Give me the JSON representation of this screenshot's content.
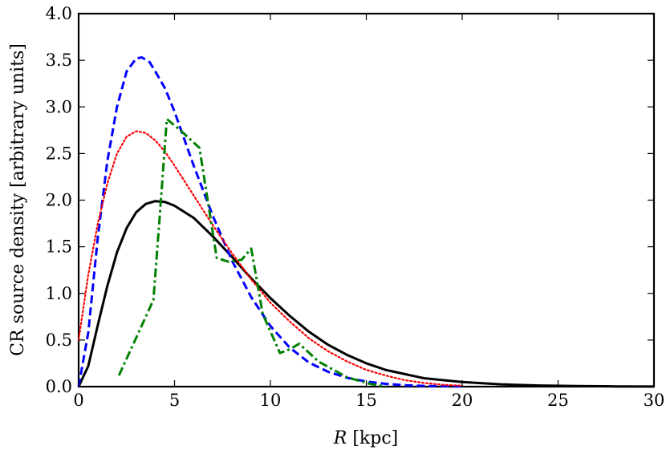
{
  "chart_data": {
    "type": "line",
    "title": "",
    "xlabel_var": "R",
    "xlabel_unit": " [kpc]",
    "ylabel": "CR source density [arbitrary units]",
    "xlim": [
      0,
      30
    ],
    "ylim": [
      0,
      4.0
    ],
    "xticks": [
      0,
      5,
      10,
      15,
      20,
      25,
      30
    ],
    "yticks": [
      0.0,
      0.5,
      1.0,
      1.5,
      2.0,
      2.5,
      3.0,
      3.5,
      4.0
    ],
    "xtick_labels": [
      "0",
      "5",
      "10",
      "15",
      "20",
      "25",
      "30"
    ],
    "ytick_labels": [
      "0.0",
      "0.5",
      "1.0",
      "1.5",
      "2.0",
      "2.5",
      "3.0",
      "3.5",
      "4.0"
    ],
    "grid": false,
    "series": [
      {
        "name": "solid",
        "color": "#000000",
        "style": "solid",
        "x": [
          0,
          0.5,
          1,
          1.5,
          2,
          2.5,
          3,
          3.5,
          4,
          4.5,
          5,
          6,
          7,
          8,
          9,
          10,
          11,
          12,
          13,
          14,
          15,
          16,
          18,
          20,
          22,
          24,
          26,
          28,
          30
        ],
        "y": [
          0.0,
          0.22,
          0.66,
          1.08,
          1.44,
          1.7,
          1.87,
          1.96,
          1.99,
          1.98,
          1.94,
          1.81,
          1.61,
          1.39,
          1.16,
          0.95,
          0.76,
          0.59,
          0.45,
          0.34,
          0.25,
          0.18,
          0.09,
          0.05,
          0.025,
          0.012,
          0.006,
          0.003,
          0.001
        ]
      },
      {
        "name": "dashed",
        "color": "#0000ff",
        "style": "dashed",
        "x": [
          0,
          0.5,
          1,
          1.5,
          2,
          2.5,
          3,
          3.3,
          3.7,
          4,
          4.5,
          5,
          5.5,
          6,
          7,
          8,
          9,
          10,
          11,
          12,
          13,
          14,
          15,
          16,
          17,
          18,
          20
        ],
        "y": [
          0.0,
          0.58,
          1.6,
          2.42,
          3.0,
          3.38,
          3.52,
          3.53,
          3.48,
          3.38,
          3.2,
          2.95,
          2.66,
          2.37,
          1.83,
          1.35,
          0.96,
          0.65,
          0.42,
          0.26,
          0.16,
          0.095,
          0.055,
          0.03,
          0.015,
          0.008,
          0.002
        ]
      },
      {
        "name": "dotted",
        "color": "#ff0000",
        "style": "dotted",
        "x": [
          0,
          0.5,
          1,
          1.5,
          2,
          2.5,
          3,
          3.5,
          4,
          4.5,
          5,
          6,
          7,
          8,
          9,
          10,
          11,
          12,
          13,
          14,
          15,
          16,
          17,
          18,
          19,
          20
        ],
        "y": [
          0.5,
          1.2,
          1.75,
          2.18,
          2.5,
          2.68,
          2.74,
          2.72,
          2.64,
          2.52,
          2.37,
          2.05,
          1.73,
          1.43,
          1.15,
          0.9,
          0.7,
          0.52,
          0.38,
          0.27,
          0.18,
          0.12,
          0.07,
          0.04,
          0.02,
          0.01
        ]
      },
      {
        "name": "dash-dot",
        "color": "#008000",
        "style": "dashdot",
        "x": [
          2.1,
          3.5,
          3.9,
          4.2,
          4.6,
          5.3,
          6.3,
          7.2,
          7.8,
          8.5,
          9.0,
          9.6,
          10.5,
          11.0,
          11.5,
          12.5,
          14.0,
          15.2,
          16.0
        ],
        "y": [
          0.12,
          0.75,
          0.93,
          1.75,
          2.87,
          2.75,
          2.56,
          1.38,
          1.34,
          1.36,
          1.48,
          0.78,
          0.36,
          0.4,
          0.46,
          0.27,
          0.1,
          0.03,
          0.0
        ]
      }
    ]
  }
}
